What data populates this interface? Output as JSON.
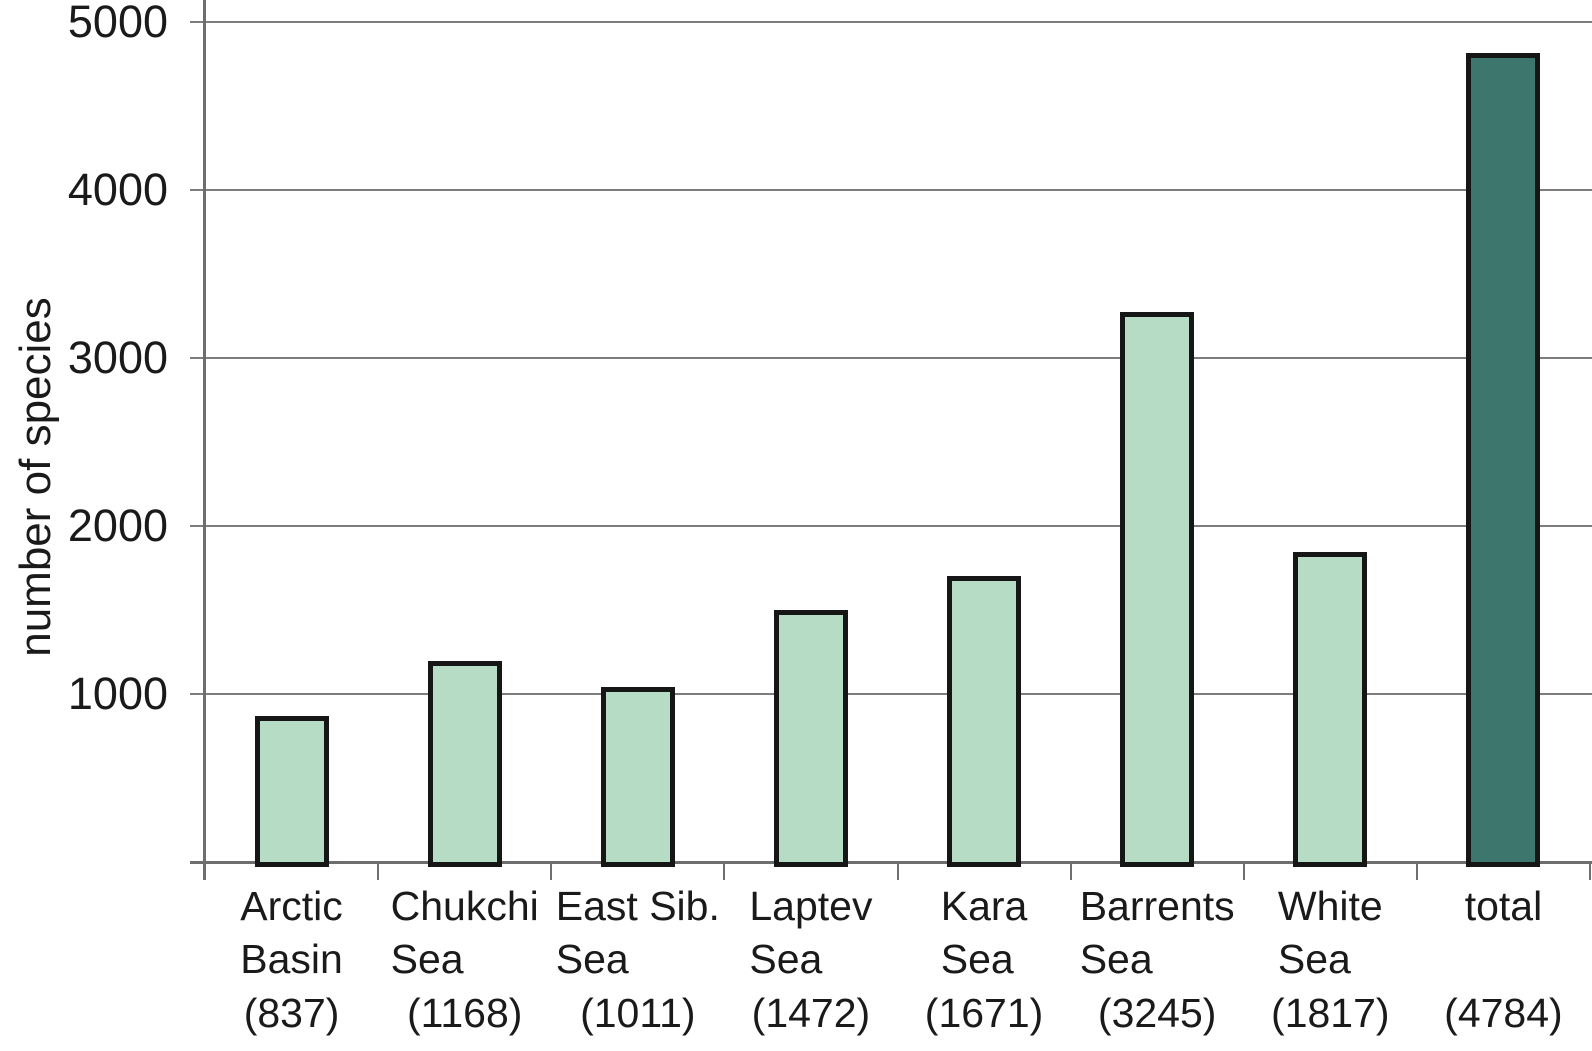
{
  "chart_data": {
    "type": "bar",
    "title": "",
    "xlabel": "",
    "ylabel": "number of species",
    "ylim": [
      0,
      5000
    ],
    "yticks": [
      1000,
      2000,
      3000,
      4000,
      5000
    ],
    "grid": true,
    "legend": false,
    "categories": [
      {
        "name": "Arctic\nBasin",
        "count_label": "(837)",
        "value": 837,
        "fill": "#b6dcc6"
      },
      {
        "name": "Chukchi\nSea",
        "count_label": "(1168)",
        "value": 1168,
        "fill": "#b6dcc6"
      },
      {
        "name": "East Sib.\nSea",
        "count_label": "(1011)",
        "value": 1011,
        "fill": "#b6dcc6"
      },
      {
        "name": "Laptev\nSea",
        "count_label": "(1472)",
        "value": 1472,
        "fill": "#b6dcc6"
      },
      {
        "name": "Kara\nSea",
        "count_label": "(1671)",
        "value": 1671,
        "fill": "#b6dcc6"
      },
      {
        "name": "Barrents\nSea",
        "count_label": "(3245)",
        "value": 3245,
        "fill": "#b6dcc6"
      },
      {
        "name": "White\nSea",
        "count_label": "(1817)",
        "value": 1817,
        "fill": "#b6dcc6"
      },
      {
        "name": "total",
        "count_label": "(4784)",
        "value": 4784,
        "fill": "#3d766c"
      }
    ],
    "colors": {
      "bar_fill": "#b6dcc6",
      "total_fill": "#3d766c",
      "bar_border": "#161616",
      "gridline": "#7d7d7d",
      "axis": "#6e6e6e",
      "text": "#1a1a1a"
    }
  }
}
